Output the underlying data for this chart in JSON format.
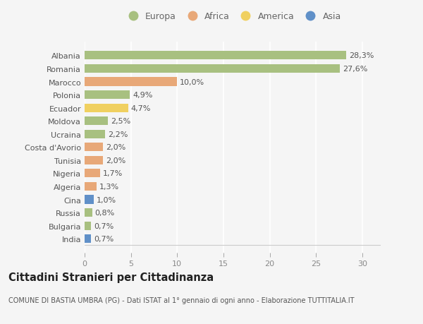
{
  "countries": [
    "Albania",
    "Romania",
    "Marocco",
    "Polonia",
    "Ecuador",
    "Moldova",
    "Ucraina",
    "Costa d'Avorio",
    "Tunisia",
    "Nigeria",
    "Algeria",
    "Cina",
    "Russia",
    "Bulgaria",
    "India"
  ],
  "values": [
    28.3,
    27.6,
    10.0,
    4.9,
    4.7,
    2.5,
    2.2,
    2.0,
    2.0,
    1.7,
    1.3,
    1.0,
    0.8,
    0.7,
    0.7
  ],
  "labels": [
    "28,3%",
    "27,6%",
    "10,0%",
    "4,9%",
    "4,7%",
    "2,5%",
    "2,2%",
    "2,0%",
    "2,0%",
    "1,7%",
    "1,3%",
    "1,0%",
    "0,8%",
    "0,7%",
    "0,7%"
  ],
  "continents": [
    "Europa",
    "Europa",
    "Africa",
    "Europa",
    "America",
    "Europa",
    "Europa",
    "Africa",
    "Africa",
    "Africa",
    "Africa",
    "Asia",
    "Europa",
    "Europa",
    "Asia"
  ],
  "continent_colors": {
    "Europa": "#a8c080",
    "Africa": "#e8a878",
    "America": "#f0d060",
    "Asia": "#6090c8"
  },
  "legend_items": [
    "Europa",
    "Africa",
    "America",
    "Asia"
  ],
  "xlim": [
    0,
    32
  ],
  "xticks": [
    0,
    5,
    10,
    15,
    20,
    25,
    30
  ],
  "title": "Cittadini Stranieri per Cittadinanza",
  "subtitle": "COMUNE DI BASTIA UMBRA (PG) - Dati ISTAT al 1° gennaio di ogni anno - Elaborazione TUTTITALIA.IT",
  "bg_color": "#f5f5f5",
  "grid_color": "#ffffff",
  "bar_height": 0.65,
  "label_fontsize": 8,
  "tick_fontsize": 8,
  "title_fontsize": 10.5,
  "subtitle_fontsize": 7
}
